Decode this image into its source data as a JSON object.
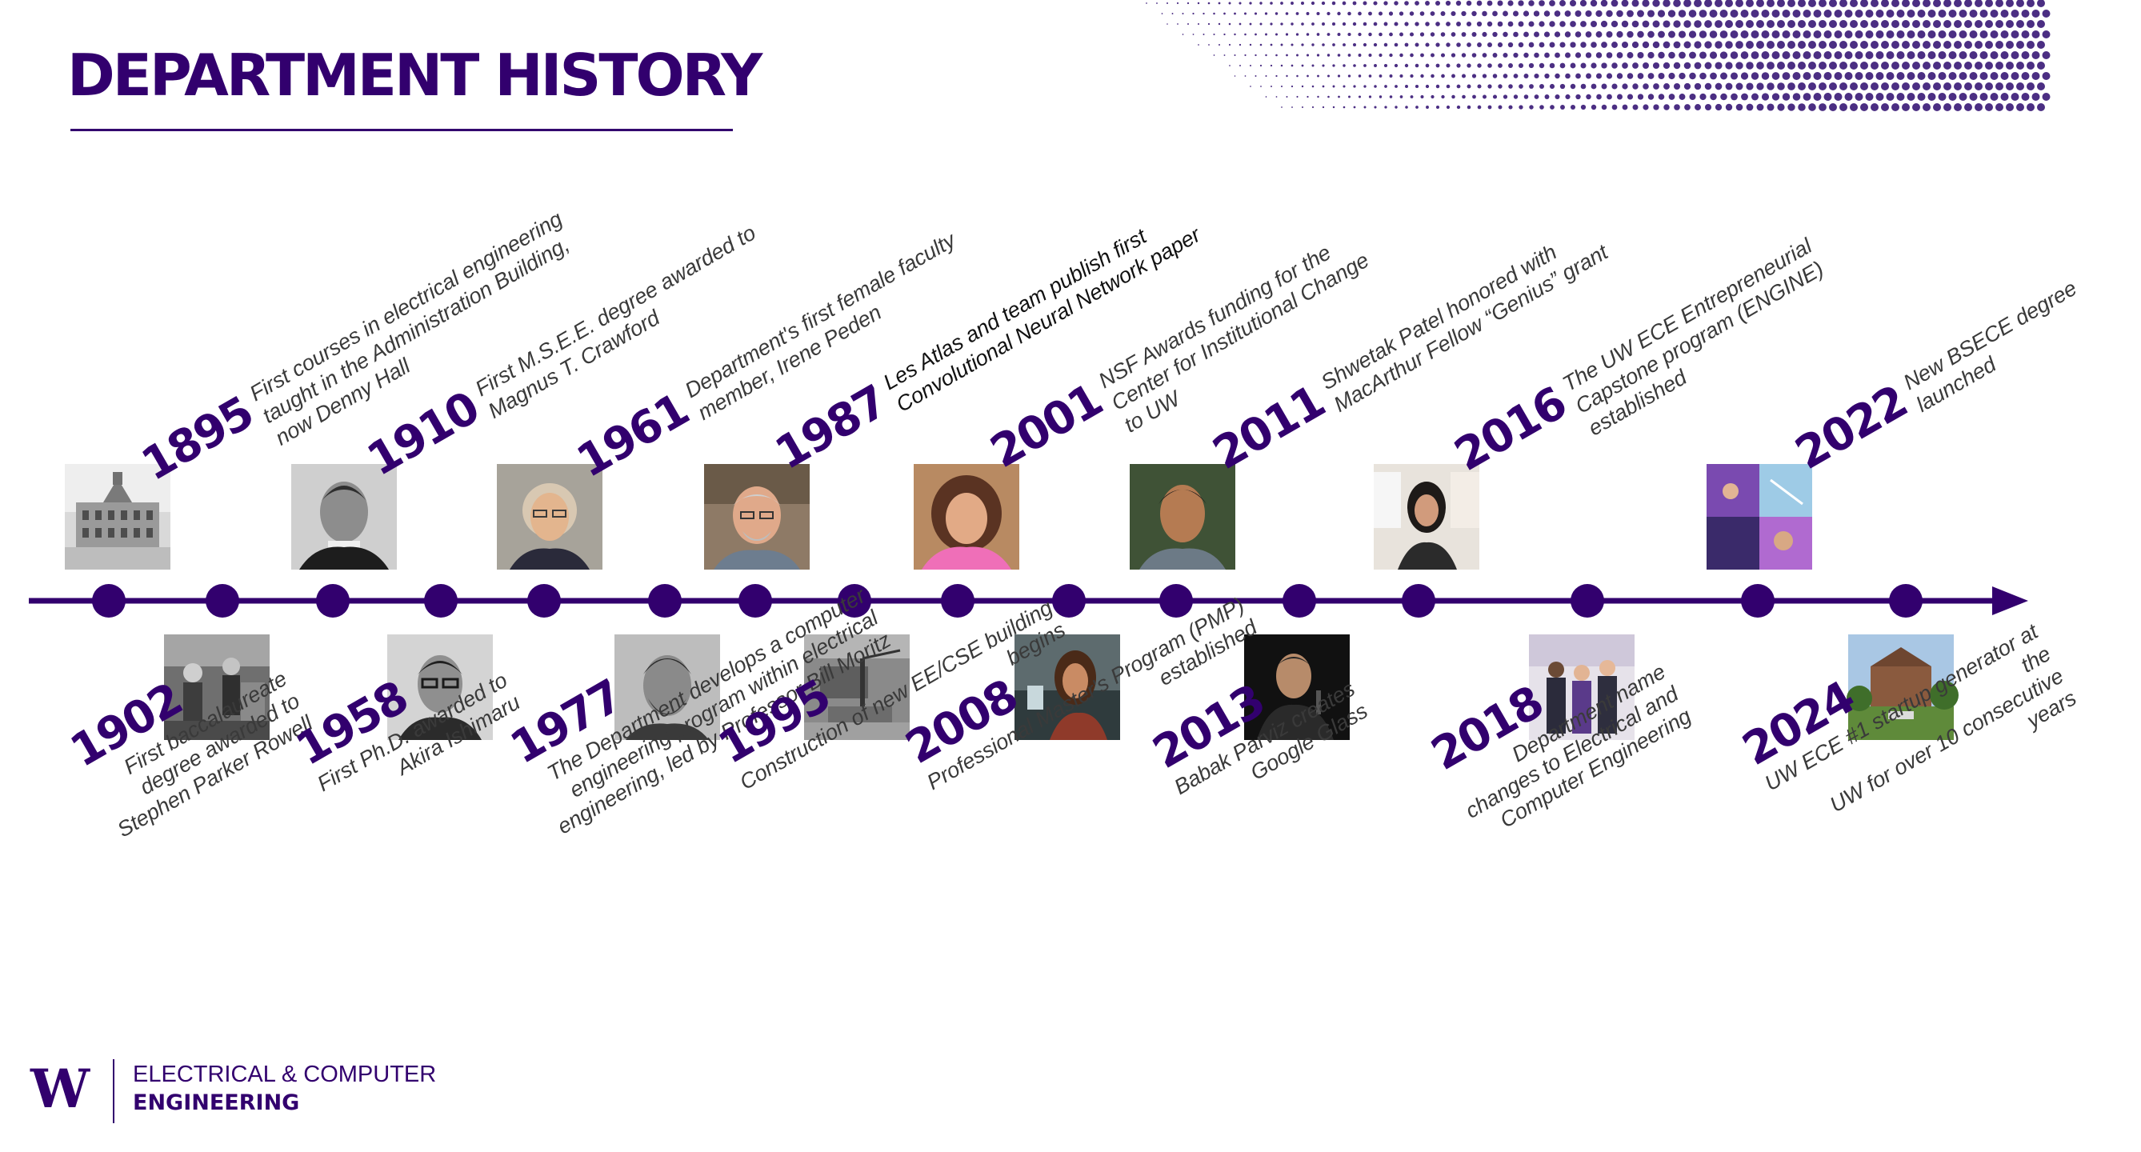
{
  "page": {
    "title": "DEPARTMENT HISTORY"
  },
  "colors": {
    "brand_purple": "#32006e",
    "text_gray": "#3a3a3a",
    "dot_purple": "#4b2e83"
  },
  "milestones": [
    {
      "year": "1895",
      "text": "First courses in electrical engineering\ntaught in the Administration Building,\nnow Denny Hall",
      "icon": "historic-building-photo"
    },
    {
      "year": "1902",
      "text": "First baccalaureate\ndegree awarded to\nStephen Parker Rowell",
      "icon": "students-lab-photo"
    },
    {
      "year": "1910",
      "text": "First M.S.E.E. degree awarded to\nMagnus T. Crawford",
      "icon": "portrait-photo"
    },
    {
      "year": "1958",
      "text": "First Ph.D. awarded to\nAkira Ishimaru",
      "icon": "portrait-photo"
    },
    {
      "year": "1961",
      "text": "Department's first female faculty\nmember, Irene Peden",
      "icon": "portrait-photo"
    },
    {
      "year": "1977",
      "text": "The Department develops a computer\nengineering program within electrical\nengineering, led by Professor Bill Moritz",
      "icon": "portrait-photo"
    },
    {
      "year": "1987",
      "text": "Les Atlas and team publish first\nConvolutional Neural Network paper",
      "icon": "portrait-photo"
    },
    {
      "year": "1995",
      "text": "Construction of new EE/CSE building\nbegins",
      "icon": "construction-photo"
    },
    {
      "year": "2001",
      "text": "NSF Awards funding for the\nCenter for Institutional Change\nto UW",
      "icon": "portrait-photo"
    },
    {
      "year": "2008",
      "text": "Professional Master's Program (PMP)\nestablished",
      "icon": "lab-photo"
    },
    {
      "year": "2011",
      "text": "Shwetak Patel honored with\nMacArthur Fellow “Genius” grant",
      "icon": "portrait-photo"
    },
    {
      "year": "2013",
      "text": "Babak Parviz creates\nGoogle Glass",
      "icon": "speaker-photo"
    },
    {
      "year": "2016",
      "text": "The UW ECE Entrepreneurial\nCapstone program (ENGINE)\nestablished",
      "icon": "poster-photo"
    },
    {
      "year": "2018",
      "text": "Department name\nchanges to Electrical and\nComputer Engineering",
      "icon": "group-photo"
    },
    {
      "year": "2022",
      "text": "New BSECE degree launched",
      "icon": "collage-photo"
    },
    {
      "year": "2024",
      "text": "UW ECE #1 startup generator at the\nUW for over 10 consecutive years",
      "icon": "campus-building-photo"
    }
  ],
  "footer": {
    "logo_letter": "W",
    "line1": "ELECTRICAL & COMPUTER",
    "line2": "ENGINEERING"
  }
}
